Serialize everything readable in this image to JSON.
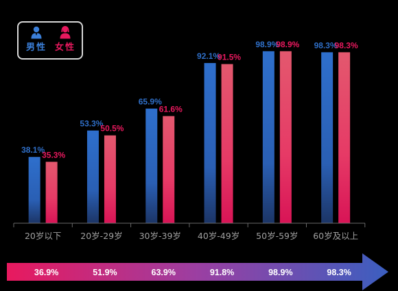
{
  "legend": {
    "male": {
      "label": "男性",
      "icon": "male-user-icon",
      "color": "#2f6fc8"
    },
    "female": {
      "label": "女性",
      "icon": "female-user-icon",
      "color": "#e8195e"
    }
  },
  "chart_data": {
    "type": "bar",
    "categories": [
      "20岁以下",
      "20岁-29岁",
      "30岁-39岁",
      "40岁-49岁",
      "50岁-59岁",
      "60岁及以上"
    ],
    "series": [
      {
        "name": "男性",
        "values": [
          38.1,
          53.3,
          65.9,
          92.1,
          98.9,
          98.3
        ],
        "labels": [
          "38.1%",
          "53.3%",
          "65.9%",
          "92.1%",
          "98.9%",
          "98.3%"
        ],
        "color": "#2f6fc8"
      },
      {
        "name": "女性",
        "values": [
          35.3,
          50.5,
          61.6,
          91.5,
          98.9,
          98.3
        ],
        "labels": [
          "35.3%",
          "50.5%",
          "61.6%",
          "91.5%",
          "98.9%",
          "98.3%"
        ],
        "color": "#e8195e"
      }
    ],
    "totals": {
      "values": [
        36.9,
        51.9,
        63.9,
        91.8,
        98.9,
        98.3
      ],
      "labels": [
        "36.9%",
        "51.9%",
        "63.9%",
        "91.8%",
        "98.9%",
        "98.3%"
      ]
    },
    "ylim": [
      0,
      100
    ],
    "grid": false,
    "legend_position": "top-left",
    "arrow_colors": [
      "#e8195e",
      "#3b5fc0"
    ]
  }
}
